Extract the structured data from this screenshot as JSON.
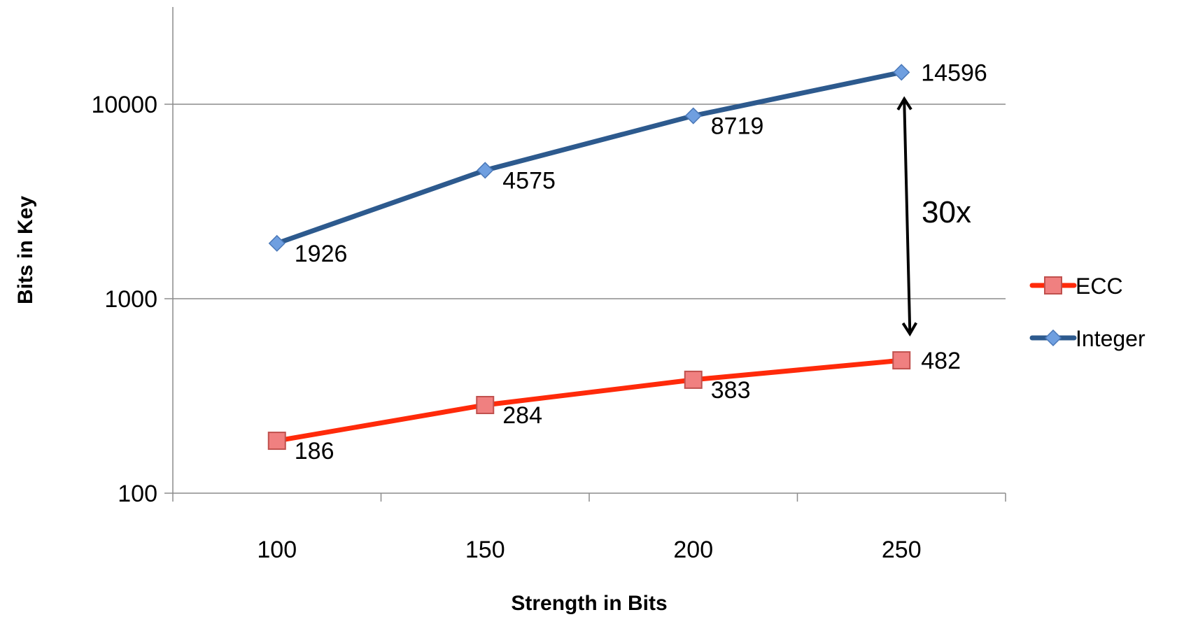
{
  "chart_data": {
    "type": "line",
    "title": "",
    "xlabel": "Strength in Bits",
    "ylabel": "Bits in Key",
    "x": [
      100,
      150,
      200,
      250
    ],
    "x_ticks": [
      "100",
      "150",
      "200",
      "250"
    ],
    "xlim": [
      75,
      275
    ],
    "y_scale": "log",
    "ylim": [
      100,
      31623
    ],
    "y_ticks": [
      "100",
      "1000",
      "10000"
    ],
    "grid": "horizontal",
    "legend_position": "right",
    "series": [
      {
        "name": "ECC",
        "values": [
          186,
          284,
          383,
          482
        ],
        "labels": [
          "186",
          "284",
          "383",
          "482"
        ],
        "color": "#ff2a0a",
        "marker": "square",
        "marker_color": "#f08080"
      },
      {
        "name": "Integer",
        "values": [
          1926,
          4575,
          8719,
          14596
        ],
        "labels": [
          "1926",
          "4575",
          "8719",
          "14596"
        ],
        "color": "#2d5a8e",
        "marker": "diamond",
        "marker_color": "#6f9fe0"
      }
    ],
    "annotations": [
      {
        "text": "30x",
        "type": "double-arrow",
        "x": 250,
        "y_from": 14596,
        "y_to": 482
      }
    ]
  }
}
